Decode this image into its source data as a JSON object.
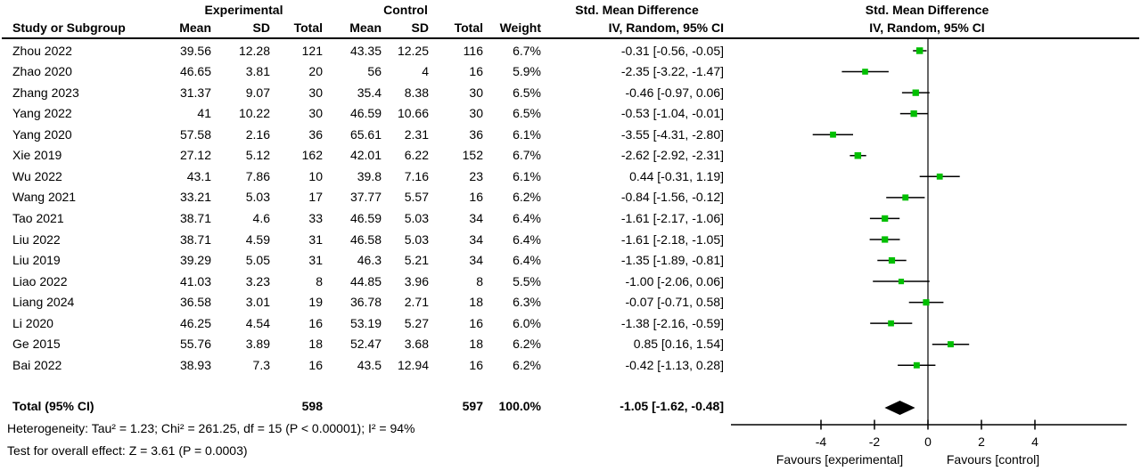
{
  "chart_data": {
    "type": "scatter",
    "variant": "forest-plot",
    "labels": {
      "experimental": "Experimental",
      "control": "Control",
      "smd": "Std. Mean Difference",
      "iv": "IV, Random, 95% CI",
      "study_col": "Study or Subgroup",
      "mean": "Mean",
      "sd": "SD",
      "total": "Total",
      "weight": "Weight"
    },
    "studies": [
      {
        "study": "Zhou 2022",
        "exp": {
          "mean": "39.56",
          "sd": "12.28",
          "total": "121"
        },
        "ctl": {
          "mean": "43.35",
          "sd": "12.25",
          "total": "116"
        },
        "weight": "6.7%",
        "smd_ci": "-0.31 [-0.56, -0.05]",
        "est": -0.31,
        "lo": -0.56,
        "hi": -0.05
      },
      {
        "study": "Zhao 2020",
        "exp": {
          "mean": "46.65",
          "sd": "3.81",
          "total": "20"
        },
        "ctl": {
          "mean": "56",
          "sd": "4",
          "total": "16"
        },
        "weight": "5.9%",
        "smd_ci": "-2.35 [-3.22, -1.47]",
        "est": -2.35,
        "lo": -3.22,
        "hi": -1.47
      },
      {
        "study": "Zhang 2023",
        "exp": {
          "mean": "31.37",
          "sd": "9.07",
          "total": "30"
        },
        "ctl": {
          "mean": "35.4",
          "sd": "8.38",
          "total": "30"
        },
        "weight": "6.5%",
        "smd_ci": "-0.46 [-0.97, 0.06]",
        "est": -0.46,
        "lo": -0.97,
        "hi": 0.06
      },
      {
        "study": "Yang 2022",
        "exp": {
          "mean": "41",
          "sd": "10.22",
          "total": "30"
        },
        "ctl": {
          "mean": "46.59",
          "sd": "10.66",
          "total": "30"
        },
        "weight": "6.5%",
        "smd_ci": "-0.53 [-1.04, -0.01]",
        "est": -0.53,
        "lo": -1.04,
        "hi": -0.01
      },
      {
        "study": "Yang 2020",
        "exp": {
          "mean": "57.58",
          "sd": "2.16",
          "total": "36"
        },
        "ctl": {
          "mean": "65.61",
          "sd": "2.31",
          "total": "36"
        },
        "weight": "6.1%",
        "smd_ci": "-3.55 [-4.31, -2.80]",
        "est": -3.55,
        "lo": -4.31,
        "hi": -2.8
      },
      {
        "study": "Xie 2019",
        "exp": {
          "mean": "27.12",
          "sd": "5.12",
          "total": "162"
        },
        "ctl": {
          "mean": "42.01",
          "sd": "6.22",
          "total": "152"
        },
        "weight": "6.7%",
        "smd_ci": "-2.62 [-2.92, -2.31]",
        "est": -2.62,
        "lo": -2.92,
        "hi": -2.31
      },
      {
        "study": "Wu 2022",
        "exp": {
          "mean": "43.1",
          "sd": "7.86",
          "total": "10"
        },
        "ctl": {
          "mean": "39.8",
          "sd": "7.16",
          "total": "23"
        },
        "weight": "6.1%",
        "smd_ci": "0.44 [-0.31, 1.19]",
        "est": 0.44,
        "lo": -0.31,
        "hi": 1.19
      },
      {
        "study": "Wang 2021",
        "exp": {
          "mean": "33.21",
          "sd": "5.03",
          "total": "17"
        },
        "ctl": {
          "mean": "37.77",
          "sd": "5.57",
          "total": "16"
        },
        "weight": "6.2%",
        "smd_ci": "-0.84 [-1.56, -0.12]",
        "est": -0.84,
        "lo": -1.56,
        "hi": -0.12
      },
      {
        "study": "Tao 2021",
        "exp": {
          "mean": "38.71",
          "sd": "4.6",
          "total": "33"
        },
        "ctl": {
          "mean": "46.59",
          "sd": "5.03",
          "total": "34"
        },
        "weight": "6.4%",
        "smd_ci": "-1.61 [-2.17, -1.06]",
        "est": -1.61,
        "lo": -2.17,
        "hi": -1.06
      },
      {
        "study": "Liu 2022",
        "exp": {
          "mean": "38.71",
          "sd": "4.59",
          "total": "31"
        },
        "ctl": {
          "mean": "46.58",
          "sd": "5.03",
          "total": "34"
        },
        "weight": "6.4%",
        "smd_ci": "-1.61 [-2.18, -1.05]",
        "est": -1.61,
        "lo": -2.18,
        "hi": -1.05
      },
      {
        "study": "Liu 2019",
        "exp": {
          "mean": "39.29",
          "sd": "5.05",
          "total": "31"
        },
        "ctl": {
          "mean": "46.3",
          "sd": "5.21",
          "total": "34"
        },
        "weight": "6.4%",
        "smd_ci": "-1.35 [-1.89, -0.81]",
        "est": -1.35,
        "lo": -1.89,
        "hi": -0.81
      },
      {
        "study": "Liao 2022",
        "exp": {
          "mean": "41.03",
          "sd": "3.23",
          "total": "8"
        },
        "ctl": {
          "mean": "44.85",
          "sd": "3.96",
          "total": "8"
        },
        "weight": "5.5%",
        "smd_ci": "-1.00 [-2.06, 0.06]",
        "est": -1.0,
        "lo": -2.06,
        "hi": 0.06
      },
      {
        "study": "Liang 2024",
        "exp": {
          "mean": "36.58",
          "sd": "3.01",
          "total": "19"
        },
        "ctl": {
          "mean": "36.78",
          "sd": "2.71",
          "total": "18"
        },
        "weight": "6.3%",
        "smd_ci": "-0.07 [-0.71, 0.58]",
        "est": -0.07,
        "lo": -0.71,
        "hi": 0.58
      },
      {
        "study": "Li 2020",
        "exp": {
          "mean": "46.25",
          "sd": "4.54",
          "total": "16"
        },
        "ctl": {
          "mean": "53.19",
          "sd": "5.27",
          "total": "16"
        },
        "weight": "6.0%",
        "smd_ci": "-1.38 [-2.16, -0.59]",
        "est": -1.38,
        "lo": -2.16,
        "hi": -0.59
      },
      {
        "study": "Ge 2015",
        "exp": {
          "mean": "55.76",
          "sd": "3.89",
          "total": "18"
        },
        "ctl": {
          "mean": "52.47",
          "sd": "3.68",
          "total": "18"
        },
        "weight": "6.2%",
        "smd_ci": "0.85 [0.16, 1.54]",
        "est": 0.85,
        "lo": 0.16,
        "hi": 1.54
      },
      {
        "study": "Bai 2022",
        "exp": {
          "mean": "38.93",
          "sd": "7.3",
          "total": "16"
        },
        "ctl": {
          "mean": "43.5",
          "sd": "12.94",
          "total": "16"
        },
        "weight": "6.2%",
        "smd_ci": "-0.42 [-1.13, 0.28]",
        "est": -0.42,
        "lo": -1.13,
        "hi": 0.28
      }
    ],
    "total": {
      "label": "Total (95% CI)",
      "n_exp": "598",
      "n_ctl": "597",
      "weight": "100.0%",
      "smd_ci": "-1.05 [-1.62, -0.48]",
      "est": -1.05,
      "lo": -1.62,
      "hi": -0.48
    },
    "footnotes": {
      "heterogeneity": "Heterogeneity: Tau² = 1.23; Chi² = 261.25, df = 15 (P < 0.00001); I² = 94%",
      "overall_effect": "Test for overall effect: Z = 3.61 (P = 0.0003)"
    },
    "axis": {
      "ticks": [
        -4,
        -2,
        0,
        2,
        4
      ],
      "xlim": [
        -7.4,
        7.4
      ],
      "favours_left": "Favours [experimental]",
      "favours_right": "Favours [control]"
    },
    "colors": {
      "marker": "#00bf00",
      "line": "#000000"
    }
  }
}
